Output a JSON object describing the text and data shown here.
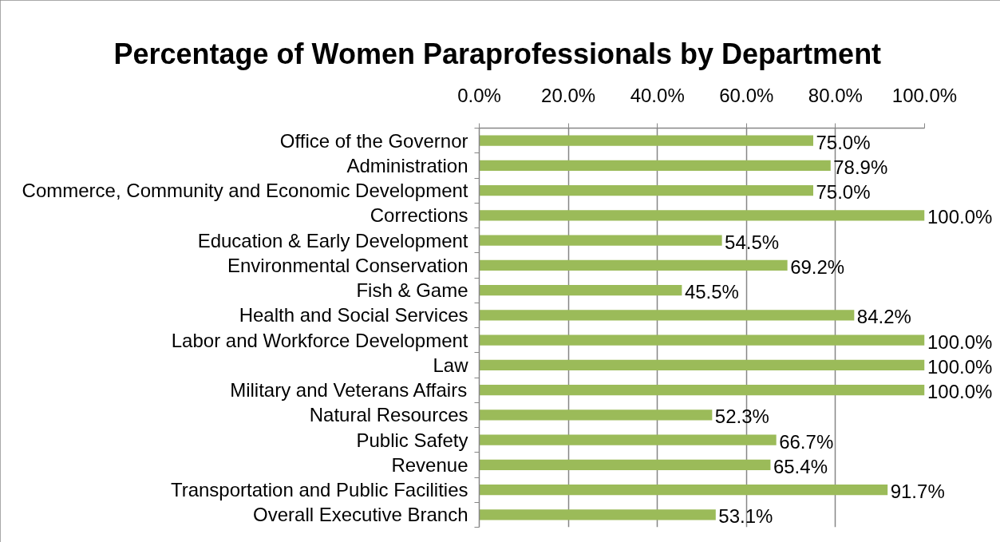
{
  "chart_data": {
    "type": "bar",
    "orientation": "horizontal",
    "title": "Percentage of Women Paraprofessionals by Department",
    "categories": [
      "Office of the Governor",
      "Administration",
      "Commerce, Community and Economic Development",
      "Corrections",
      "Education & Early Development",
      "Environmental Conservation",
      "Fish & Game",
      "Health and Social Services",
      "Labor and Workforce Development",
      "Law",
      "Military and Veterans Affairs",
      "Natural Resources",
      "Public Safety",
      "Revenue",
      "Transportation and Public Facilities",
      "Overall Executive Branch"
    ],
    "values": [
      75.0,
      78.9,
      75.0,
      100.0,
      54.5,
      69.2,
      45.5,
      84.2,
      100.0,
      100.0,
      100.0,
      52.3,
      66.7,
      65.4,
      91.7,
      53.1
    ],
    "value_labels": [
      "75.0%",
      "78.9%",
      "75.0%",
      "100.0%",
      "54.5%",
      "69.2%",
      "45.5%",
      "84.2%",
      "100.0%",
      "100.0%",
      "100.0%",
      "52.3%",
      "66.7%",
      "65.4%",
      "91.7%",
      "53.1%"
    ],
    "color": "#9bbb59",
    "xlim": [
      0,
      100
    ],
    "xticks": [
      {
        "value": 0,
        "label": "0.0%"
      },
      {
        "value": 20,
        "label": "20.0%"
      },
      {
        "value": 40,
        "label": "40.0%"
      },
      {
        "value": 60,
        "label": "60.0%"
      },
      {
        "value": 80,
        "label": "80.0%"
      },
      {
        "value": 100,
        "label": "100.0%"
      }
    ],
    "grid": "x"
  }
}
